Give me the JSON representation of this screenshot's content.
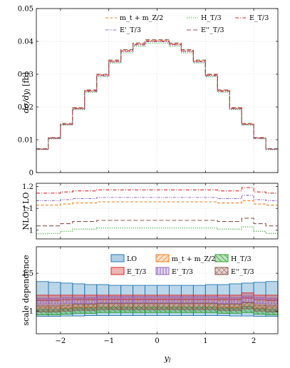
{
  "chart_data": [
    {
      "type": "line",
      "title": "",
      "xlabel": "",
      "ylabel": "dσ/dy_l [fb]",
      "xlim": [
        -2.5,
        2.5
      ],
      "ylim": [
        0,
        0.05
      ],
      "yticks": [
        0,
        0.01,
        0.02,
        0.03,
        0.04,
        0.05
      ],
      "ytick_labels": [
        "0",
        "0.01",
        "0.02",
        "0.03",
        "0.04",
        "0.05"
      ],
      "grid": true,
      "legend_position": "top-right",
      "bin_edges": [
        -2.5,
        -2.25,
        -2.0,
        -1.75,
        -1.5,
        -1.25,
        -1.0,
        -0.75,
        -0.5,
        -0.25,
        0.0,
        0.25,
        0.5,
        0.75,
        1.0,
        1.25,
        1.5,
        1.75,
        2.0,
        2.25,
        2.5
      ],
      "series": [
        {
          "name": "m_t + m_Z/2",
          "color": "#f07f22",
          "dash": "dashed",
          "values": [
            0.0072,
            0.0106,
            0.0148,
            0.0196,
            0.025,
            0.0298,
            0.034,
            0.0372,
            0.0392,
            0.0402,
            0.0402,
            0.0392,
            0.0372,
            0.034,
            0.0298,
            0.025,
            0.0196,
            0.0148,
            0.0106,
            0.0072
          ]
        },
        {
          "name": "H_T/3",
          "color": "#2ca02c",
          "dash": "dotted",
          "values": [
            0.007,
            0.0103,
            0.0145,
            0.0192,
            0.0245,
            0.0292,
            0.0334,
            0.0365,
            0.0385,
            0.0395,
            0.0395,
            0.0385,
            0.0365,
            0.0334,
            0.0292,
            0.0245,
            0.0192,
            0.0145,
            0.0103,
            0.007
          ]
        },
        {
          "name": "E_T/3",
          "color": "#d62728",
          "dash": "dashdot",
          "values": [
            0.0071,
            0.0105,
            0.0147,
            0.0195,
            0.0249,
            0.0297,
            0.0339,
            0.0371,
            0.0391,
            0.0401,
            0.0401,
            0.0391,
            0.0371,
            0.0339,
            0.0297,
            0.0249,
            0.0195,
            0.0147,
            0.0105,
            0.0071
          ]
        },
        {
          "name": "E'_T/3",
          "color": "#9467bd",
          "dash": "dashdotdot",
          "values": [
            0.0071,
            0.0104,
            0.0146,
            0.0194,
            0.0247,
            0.0295,
            0.0337,
            0.0369,
            0.0389,
            0.0399,
            0.0399,
            0.0389,
            0.0369,
            0.0337,
            0.0295,
            0.0247,
            0.0194,
            0.0146,
            0.0104,
            0.0071
          ]
        },
        {
          "name": "E''_T/3",
          "color": "#8c564b",
          "dash": "longdash",
          "values": [
            0.0073,
            0.0107,
            0.015,
            0.0198,
            0.0252,
            0.03,
            0.0343,
            0.0375,
            0.0395,
            0.0405,
            0.0405,
            0.0395,
            0.0375,
            0.0343,
            0.03,
            0.0252,
            0.0198,
            0.015,
            0.0107,
            0.0073
          ]
        }
      ]
    },
    {
      "type": "line",
      "title": "",
      "xlabel": "",
      "ylabel": "NLO / LO",
      "xlim": [
        -2.5,
        2.5
      ],
      "ylim": [
        0.96,
        1.215
      ],
      "yticks": [
        1.0,
        1.1,
        1.2
      ],
      "ytick_labels": [
        "1",
        "1.1",
        "1.2"
      ],
      "grid": true,
      "bin_edges": [
        -2.5,
        -2.25,
        -2.0,
        -1.75,
        -1.5,
        -1.25,
        -1.0,
        -0.75,
        -0.5,
        -0.25,
        0.0,
        0.25,
        0.5,
        0.75,
        1.0,
        1.25,
        1.5,
        1.75,
        2.0,
        2.25,
        2.5
      ],
      "series": [
        {
          "name": "m_t + m_Z/2",
          "color": "#f07f22",
          "dash": "dashed",
          "values": [
            1.115,
            1.115,
            1.12,
            1.125,
            1.125,
            1.13,
            1.13,
            1.13,
            1.13,
            1.13,
            1.13,
            1.13,
            1.13,
            1.13,
            1.13,
            1.125,
            1.125,
            1.135,
            1.12,
            1.115
          ]
        },
        {
          "name": "H_T/3",
          "color": "#2ca02c",
          "dash": "dotted",
          "values": [
            0.983,
            0.985,
            0.995,
            1.005,
            1.005,
            1.01,
            1.01,
            1.01,
            1.01,
            1.01,
            1.01,
            1.01,
            1.01,
            1.01,
            1.01,
            1.005,
            1.005,
            1.015,
            0.995,
            0.985
          ]
        },
        {
          "name": "E_T/3",
          "color": "#d62728",
          "dash": "dashdot",
          "values": [
            1.17,
            1.17,
            1.175,
            1.18,
            1.18,
            1.185,
            1.185,
            1.185,
            1.185,
            1.185,
            1.185,
            1.185,
            1.185,
            1.185,
            1.185,
            1.18,
            1.18,
            1.195,
            1.175,
            1.17
          ]
        },
        {
          "name": "E'_T/3",
          "color": "#9467bd",
          "dash": "dashdotdot",
          "values": [
            1.135,
            1.135,
            1.14,
            1.145,
            1.145,
            1.15,
            1.15,
            1.15,
            1.15,
            1.15,
            1.15,
            1.15,
            1.15,
            1.15,
            1.15,
            1.145,
            1.145,
            1.16,
            1.14,
            1.135
          ]
        },
        {
          "name": "E''_T/3",
          "color": "#8c564b",
          "dash": "longdash",
          "values": [
            1.02,
            1.02,
            1.03,
            1.04,
            1.04,
            1.045,
            1.045,
            1.045,
            1.045,
            1.045,
            1.045,
            1.045,
            1.045,
            1.045,
            1.045,
            1.04,
            1.04,
            1.055,
            1.03,
            1.02
          ]
        }
      ]
    },
    {
      "type": "area",
      "title": "",
      "xlabel": "y_l",
      "ylabel": "scale dependence",
      "xlim": [
        -2.5,
        2.5
      ],
      "ylim": [
        0.7,
        1.85
      ],
      "yticks": [
        1.0,
        1.5
      ],
      "ytick_labels": [
        "1",
        "1.5"
      ],
      "xticks": [
        -2,
        -1,
        0,
        1,
        2
      ],
      "xtick_labels": [
        "−2",
        "−1",
        "0",
        "1",
        "2"
      ],
      "grid": true,
      "legend_position": "top-right",
      "bin_edges": [
        -2.5,
        -2.25,
        -2.0,
        -1.75,
        -1.5,
        -1.25,
        -1.0,
        -0.75,
        -0.5,
        -0.25,
        0.0,
        0.25,
        0.5,
        0.75,
        1.0,
        1.25,
        1.5,
        1.75,
        2.0,
        2.25,
        2.5
      ],
      "series": [
        {
          "name": "LO",
          "color": "#1f77b4",
          "pattern": "solid",
          "lower": [
            0.93,
            0.93,
            0.935,
            0.935,
            0.94,
            0.94,
            0.94,
            0.94,
            0.94,
            0.94,
            0.94,
            0.94,
            0.94,
            0.94,
            0.94,
            0.94,
            0.935,
            0.935,
            0.93,
            0.93
          ],
          "upper": [
            1.39,
            1.38,
            1.37,
            1.36,
            1.35,
            1.35,
            1.34,
            1.34,
            1.34,
            1.34,
            1.34,
            1.34,
            1.34,
            1.34,
            1.35,
            1.35,
            1.36,
            1.37,
            1.38,
            1.39
          ]
        },
        {
          "name": "m_t + m_Z/2",
          "color": "#f07f22",
          "pattern": "diagonal",
          "lower": [
            1.04,
            1.04,
            1.04,
            1.05,
            1.05,
            1.05,
            1.05,
            1.05,
            1.05,
            1.05,
            1.05,
            1.05,
            1.05,
            1.05,
            1.05,
            1.05,
            1.05,
            1.06,
            1.04,
            1.04
          ],
          "upper": [
            1.15,
            1.15,
            1.15,
            1.16,
            1.16,
            1.16,
            1.16,
            1.16,
            1.16,
            1.16,
            1.16,
            1.16,
            1.16,
            1.16,
            1.16,
            1.16,
            1.16,
            1.18,
            1.15,
            1.15
          ]
        },
        {
          "name": "H_T/3",
          "color": "#2ca02c",
          "pattern": "diagonal",
          "lower": [
            0.95,
            0.95,
            0.96,
            0.97,
            0.97,
            0.98,
            0.98,
            0.98,
            0.98,
            0.98,
            0.98,
            0.98,
            0.98,
            0.98,
            0.98,
            0.97,
            0.97,
            0.98,
            0.96,
            0.95
          ],
          "upper": [
            1.02,
            1.02,
            1.03,
            1.04,
            1.04,
            1.05,
            1.05,
            1.05,
            1.05,
            1.05,
            1.05,
            1.05,
            1.05,
            1.05,
            1.05,
            1.04,
            1.04,
            1.06,
            1.03,
            1.02
          ]
        },
        {
          "name": "E_T/3",
          "color": "#d62728",
          "pattern": "solid",
          "lower": [
            1.14,
            1.14,
            1.15,
            1.15,
            1.15,
            1.15,
            1.15,
            1.15,
            1.15,
            1.15,
            1.15,
            1.15,
            1.15,
            1.15,
            1.15,
            1.15,
            1.15,
            1.17,
            1.15,
            1.14
          ],
          "upper": [
            1.21,
            1.21,
            1.21,
            1.21,
            1.21,
            1.21,
            1.21,
            1.21,
            1.21,
            1.21,
            1.21,
            1.21,
            1.21,
            1.21,
            1.21,
            1.21,
            1.21,
            1.24,
            1.21,
            1.21
          ]
        },
        {
          "name": "E'_T/3",
          "color": "#9467bd",
          "pattern": "vertical",
          "lower": [
            1.09,
            1.09,
            1.1,
            1.1,
            1.1,
            1.11,
            1.11,
            1.11,
            1.11,
            1.11,
            1.11,
            1.11,
            1.11,
            1.11,
            1.11,
            1.1,
            1.1,
            1.12,
            1.1,
            1.09
          ],
          "upper": [
            1.17,
            1.17,
            1.18,
            1.18,
            1.18,
            1.19,
            1.19,
            1.19,
            1.19,
            1.19,
            1.19,
            1.19,
            1.19,
            1.19,
            1.19,
            1.18,
            1.18,
            1.2,
            1.18,
            1.17
          ]
        },
        {
          "name": "E''_T/3",
          "color": "#8c564b",
          "pattern": "crosshatch",
          "lower": [
            0.99,
            0.99,
            1.0,
            1.01,
            1.01,
            1.02,
            1.02,
            1.02,
            1.02,
            1.02,
            1.02,
            1.02,
            1.02,
            1.02,
            1.02,
            1.01,
            1.01,
            1.03,
            1.0,
            0.99
          ],
          "upper": [
            1.07,
            1.07,
            1.08,
            1.09,
            1.09,
            1.1,
            1.1,
            1.1,
            1.1,
            1.1,
            1.1,
            1.1,
            1.1,
            1.1,
            1.1,
            1.09,
            1.09,
            1.11,
            1.08,
            1.07
          ]
        }
      ]
    }
  ]
}
